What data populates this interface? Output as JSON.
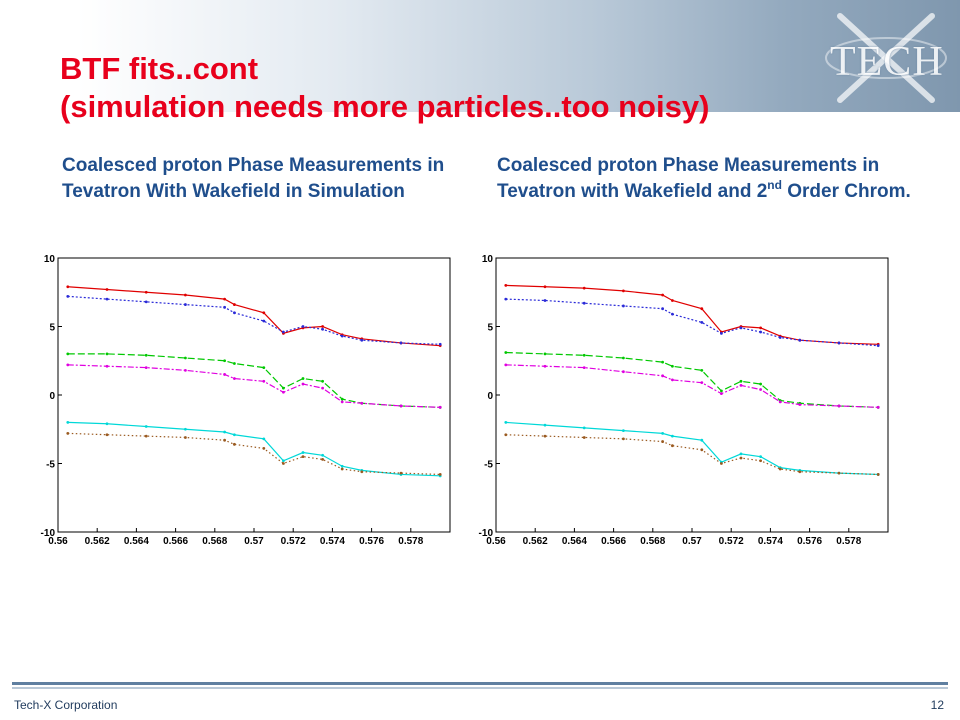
{
  "slide": {
    "title_line1": "BTF fits..cont",
    "title_line2": "(simulation needs more particles..too noisy)",
    "logo_text": "TECH",
    "footer_company": "Tech-X Corporation",
    "page_number": "12"
  },
  "colors": {
    "title": "#e8001c",
    "subtitle": "#1f4e8c",
    "series": [
      "#e00000",
      "#2a2ad8",
      "#00c800",
      "#e000e0",
      "#00d8d8",
      "#9a5a20"
    ]
  },
  "chart_data": [
    {
      "type": "line",
      "title": "Coalesced proton Phase Measurements in Tevatron With Wakefield in Simulation",
      "xlabel": "",
      "ylabel": "",
      "xlim": [
        0.56,
        0.58
      ],
      "ylim": [
        -10,
        10
      ],
      "x_ticks": [
        "0.56",
        "0.562",
        "0.564",
        "0.566",
        "0.568",
        "0.57",
        "0.572",
        "0.574",
        "0.576",
        "0.578"
      ],
      "y_ticks": [
        "10",
        "5",
        "0",
        "-5",
        "-10"
      ],
      "x": [
        0.5605,
        0.5625,
        0.5645,
        0.5665,
        0.5685,
        0.569,
        0.5705,
        0.5715,
        0.5725,
        0.5735,
        0.5745,
        0.5755,
        0.5775,
        0.5795
      ],
      "series": [
        {
          "values": [
            7.9,
            7.7,
            7.5,
            7.3,
            7.0,
            6.6,
            6.0,
            4.5,
            4.9,
            5.0,
            4.4,
            4.1,
            3.8,
            3.6
          ]
        },
        {
          "values": [
            7.2,
            7.0,
            6.8,
            6.6,
            6.4,
            6.0,
            5.4,
            4.6,
            5.0,
            4.8,
            4.3,
            4.0,
            3.8,
            3.7
          ]
        },
        {
          "values": [
            3.0,
            3.0,
            2.9,
            2.7,
            2.5,
            2.3,
            2.0,
            0.5,
            1.2,
            1.0,
            -0.3,
            -0.6,
            -0.8,
            -0.9
          ]
        },
        {
          "values": [
            2.2,
            2.1,
            2.0,
            1.8,
            1.5,
            1.2,
            1.0,
            0.2,
            0.8,
            0.5,
            -0.5,
            -0.6,
            -0.8,
            -0.9
          ]
        },
        {
          "values": [
            -2.0,
            -2.1,
            -2.3,
            -2.5,
            -2.7,
            -2.9,
            -3.2,
            -4.8,
            -4.2,
            -4.4,
            -5.2,
            -5.5,
            -5.8,
            -5.9
          ]
        },
        {
          "values": [
            -2.8,
            -2.9,
            -3.0,
            -3.1,
            -3.3,
            -3.6,
            -3.9,
            -5.0,
            -4.5,
            -4.7,
            -5.4,
            -5.6,
            -5.7,
            -5.8
          ]
        }
      ]
    },
    {
      "type": "line",
      "title": "Coalesced proton Phase Measurements in Tevatron with Wakefield and 2nd Order Chrom.",
      "title_parts": [
        "Coalesced proton Phase Measurements in Tevatron with Wakefield and 2",
        "nd",
        " Order Chrom."
      ],
      "xlabel": "",
      "ylabel": "",
      "xlim": [
        0.56,
        0.58
      ],
      "ylim": [
        -10,
        10
      ],
      "x_ticks": [
        "0.56",
        "0.562",
        "0.564",
        "0.566",
        "0.568",
        "0.57",
        "0.572",
        "0.574",
        "0.576",
        "0.578"
      ],
      "y_ticks": [
        "10",
        "5",
        "0",
        "-5",
        "-10"
      ],
      "x": [
        0.5605,
        0.5625,
        0.5645,
        0.5665,
        0.5685,
        0.569,
        0.5705,
        0.5715,
        0.5725,
        0.5735,
        0.5745,
        0.5755,
        0.5775,
        0.5795
      ],
      "series": [
        {
          "values": [
            8.0,
            7.9,
            7.8,
            7.6,
            7.3,
            6.9,
            6.3,
            4.6,
            5.0,
            4.9,
            4.3,
            4.0,
            3.8,
            3.7
          ]
        },
        {
          "values": [
            7.0,
            6.9,
            6.7,
            6.5,
            6.3,
            5.9,
            5.3,
            4.5,
            4.9,
            4.6,
            4.2,
            4.0,
            3.8,
            3.6
          ]
        },
        {
          "values": [
            3.1,
            3.0,
            2.9,
            2.7,
            2.4,
            2.1,
            1.8,
            0.3,
            1.0,
            0.8,
            -0.4,
            -0.6,
            -0.8,
            -0.9
          ]
        },
        {
          "values": [
            2.2,
            2.1,
            2.0,
            1.7,
            1.4,
            1.1,
            0.9,
            0.1,
            0.7,
            0.4,
            -0.5,
            -0.7,
            -0.8,
            -0.9
          ]
        },
        {
          "values": [
            -2.0,
            -2.2,
            -2.4,
            -2.6,
            -2.8,
            -3.0,
            -3.3,
            -4.9,
            -4.3,
            -4.5,
            -5.3,
            -5.5,
            -5.7,
            -5.8
          ]
        },
        {
          "values": [
            -2.9,
            -3.0,
            -3.1,
            -3.2,
            -3.4,
            -3.7,
            -4.0,
            -5.0,
            -4.6,
            -4.8,
            -5.4,
            -5.6,
            -5.7,
            -5.8
          ]
        }
      ]
    }
  ]
}
